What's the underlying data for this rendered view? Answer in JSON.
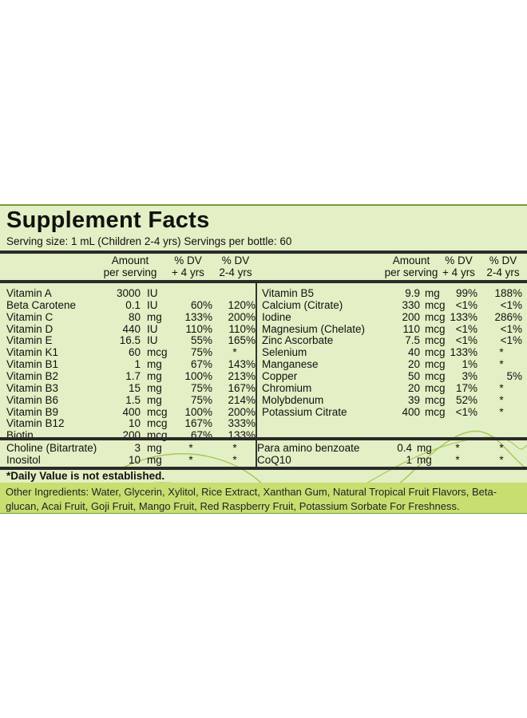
{
  "title": "Supplement Facts",
  "serving": "Serving size: 1 mL (Children 2-4 yrs)  Servings per bottle: 60",
  "headers": {
    "amount": [
      "Amount",
      "per serving"
    ],
    "dv4": [
      "% DV",
      "+ 4 yrs"
    ],
    "dv24": [
      "% DV",
      "2-4 yrs"
    ]
  },
  "left_rows": [
    {
      "name": "Vitamin A",
      "amt": "3000",
      "unit": "IU",
      "dv4": "",
      "dv24": ""
    },
    {
      "name": "Beta Carotene",
      "amt": "0.1",
      "unit": "IU",
      "dv4": "60%",
      "dv24": "120%"
    },
    {
      "name": "Vitamin C",
      "amt": "80",
      "unit": "mg",
      "dv4": "133%",
      "dv24": "200%"
    },
    {
      "name": "Vitamin D",
      "amt": "440",
      "unit": "IU",
      "dv4": "110%",
      "dv24": "110%"
    },
    {
      "name": "Vitamin E",
      "amt": "16.5",
      "unit": "IU",
      "dv4": "55%",
      "dv24": "165%"
    },
    {
      "name": "Vitamin K1",
      "amt": "60",
      "unit": "mcg",
      "dv4": "75%",
      "dv24": "*"
    },
    {
      "name": "Vitamin B1",
      "amt": "1",
      "unit": "mg",
      "dv4": "67%",
      "dv24": "143%"
    },
    {
      "name": "Vitamin B2",
      "amt": "1.7",
      "unit": "mg",
      "dv4": "100%",
      "dv24": "213%"
    },
    {
      "name": "Vitamin B3",
      "amt": "15",
      "unit": "mg",
      "dv4": "75%",
      "dv24": "167%"
    },
    {
      "name": "Vitamin B6",
      "amt": "1.5",
      "unit": "mg",
      "dv4": "75%",
      "dv24": "214%"
    },
    {
      "name": "Vitamin B9",
      "amt": "400",
      "unit": "mcg",
      "dv4": "100%",
      "dv24": "200%"
    },
    {
      "name": "Vitamin B12",
      "amt": "10",
      "unit": "mcg",
      "dv4": "167%",
      "dv24": "333%"
    },
    {
      "name": "Biotin",
      "amt": "200",
      "unit": "mcg",
      "dv4": "67%",
      "dv24": "133%"
    }
  ],
  "right_rows": [
    {
      "name": "Vitamin B5",
      "amt": "9.9",
      "unit": "mg",
      "dv4": "99%",
      "dv24": "188%"
    },
    {
      "name": "Calcium (Citrate)",
      "amt": "330",
      "unit": "mcg",
      "dv4": "<1%",
      "dv24": "<1%"
    },
    {
      "name": "Iodine",
      "amt": "200",
      "unit": "mcg",
      "dv4": "133%",
      "dv24": "286%"
    },
    {
      "name": "Magnesium (Chelate)",
      "amt": "110",
      "unit": "mcg",
      "dv4": "<1%",
      "dv24": "<1%"
    },
    {
      "name": "Zinc Ascorbate",
      "amt": "7.5",
      "unit": "mcg",
      "dv4": "<1%",
      "dv24": "<1%"
    },
    {
      "name": "Selenium",
      "amt": "40",
      "unit": "mcg",
      "dv4": "133%",
      "dv24": "*"
    },
    {
      "name": "Manganese",
      "amt": "20",
      "unit": "mcg",
      "dv4": "1%",
      "dv24": "*"
    },
    {
      "name": "Copper",
      "amt": "50",
      "unit": "mcg",
      "dv4": "3%",
      "dv24": "5%"
    },
    {
      "name": "Chromium",
      "amt": "20",
      "unit": "mcg",
      "dv4": "17%",
      "dv24": "*"
    },
    {
      "name": "Molybdenum",
      "amt": "39",
      "unit": "mcg",
      "dv4": "52%",
      "dv24": "*"
    },
    {
      "name": "Potassium Citrate",
      "amt": "400",
      "unit": "mcg",
      "dv4": "<1%",
      "dv24": "*"
    }
  ],
  "lower_left_rows": [
    {
      "name": "Choline (Bitartrate)",
      "amt": "3",
      "unit": "mg",
      "dv4": "*",
      "dv24": "*"
    },
    {
      "name": "Inositol",
      "amt": "10",
      "unit": "mg",
      "dv4": "*",
      "dv24": "*"
    }
  ],
  "lower_right_rows": [
    {
      "name": "Para amino benzoate",
      "amt": "0.4",
      "unit": "mg",
      "dv4": "*",
      "dv24": "*"
    },
    {
      "name": "CoQ10",
      "amt": "1",
      "unit": "mg",
      "dv4": "*",
      "dv24": "*"
    }
  ],
  "daily_value_note": "*Daily Value is not established.",
  "other_ingredients": "Other Ingredients: Water, Glycerin, Xylitol, Rice Extract, Xanthan Gum, Natural Tropical Fruit Flavors, Beta-glucan, Acai Fruit, Goji Fruit, Mango Fruit, Red Raspberry Fruit, Potassium Sorbate For Freshness.",
  "colors": {
    "panel": "#e3efc4",
    "ingredients_band": "#c6df70",
    "swirl": "#8fb640"
  }
}
